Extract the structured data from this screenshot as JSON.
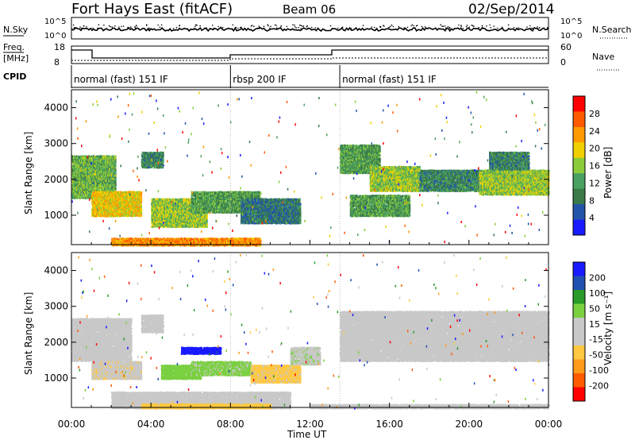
{
  "header": {
    "station": "Fort Hays East (fitACF)",
    "beam": "Beam 06",
    "date": "02/Sep/2014"
  },
  "noise_panel": {
    "left_label": "N.Sky",
    "right_label": "N.Search",
    "ticks": [
      "10^5",
      "10^0"
    ]
  },
  "freq_panel": {
    "freq_label": "Freq.",
    "unit_label": "[MHz]",
    "left_ticks": [
      "18",
      "8"
    ],
    "right_ticks": [
      "60",
      "0"
    ],
    "nave_label": "Nave"
  },
  "cpid": {
    "label": "CPID",
    "segments": [
      {
        "label": "normal (fast) 151 IF",
        "start_hour": 0,
        "end_hour": 8
      },
      {
        "label": "rbsp 200 IF",
        "start_hour": 8,
        "end_hour": 13.5
      },
      {
        "label": "normal (fast) 151 IF",
        "start_hour": 13.5,
        "end_hour": 24
      }
    ]
  },
  "colors": {
    "power_scale": [
      "#1a1aff",
      "#2255aa",
      "#3a7a4a",
      "#4aa060",
      "#8ccc3a",
      "#f0d000",
      "#ff9900",
      "#ff5a00",
      "#ff0000"
    ],
    "velocity_scale": [
      "#ff0000",
      "#ff5a00",
      "#ff9a1a",
      "#ffc840",
      "#c8c8c8",
      "#c8c8c8",
      "#7ad040",
      "#2a9a2a",
      "#2050b0",
      "#1a1aff"
    ]
  },
  "chart_data": [
    {
      "type": "heatmap",
      "name": "power",
      "ylabel": "Slant Range [km]",
      "ylim": [
        180,
        4500
      ],
      "yticks": [
        "1000",
        "2000",
        "3000",
        "4000"
      ],
      "xlim": [
        0,
        24
      ],
      "colorbar": {
        "label": "Power [dB]",
        "ticks": [
          "4",
          "8",
          "12",
          "16",
          "20",
          "24",
          "28"
        ],
        "range": [
          0,
          32
        ]
      },
      "echo_bands": [
        {
          "t_start": 0.0,
          "t_end": 2.2,
          "r_low": 1500,
          "r_high": 2700,
          "level": 14
        },
        {
          "t_start": 1.0,
          "t_end": 3.5,
          "r_low": 1000,
          "r_high": 1700,
          "level": 20
        },
        {
          "t_start": 3.5,
          "t_end": 4.6,
          "r_low": 2350,
          "r_high": 2800,
          "level": 10
        },
        {
          "t_start": 4.0,
          "t_end": 6.8,
          "r_low": 700,
          "r_high": 1500,
          "level": 16
        },
        {
          "t_start": 6.0,
          "t_end": 9.5,
          "r_low": 1100,
          "r_high": 1700,
          "level": 12
        },
        {
          "t_start": 8.5,
          "t_end": 11.5,
          "r_low": 800,
          "r_high": 1500,
          "level": 8
        },
        {
          "t_start": 13.5,
          "t_end": 15.5,
          "r_low": 2200,
          "r_high": 3000,
          "level": 12
        },
        {
          "t_start": 15.0,
          "t_end": 17.5,
          "r_low": 1700,
          "r_high": 2400,
          "level": 16
        },
        {
          "t_start": 14.0,
          "t_end": 17.0,
          "r_low": 1000,
          "r_high": 1600,
          "level": 12
        },
        {
          "t_start": 17.5,
          "t_end": 20.5,
          "r_low": 1700,
          "r_high": 2300,
          "level": 10
        },
        {
          "t_start": 20.5,
          "t_end": 24.0,
          "r_low": 1600,
          "r_high": 2300,
          "level": 16
        },
        {
          "t_start": 21.0,
          "t_end": 23.0,
          "r_low": 2300,
          "r_high": 2800,
          "level": 10
        },
        {
          "t_start": 2.0,
          "t_end": 9.5,
          "r_low": 180,
          "r_high": 400,
          "level": 24
        }
      ]
    },
    {
      "type": "heatmap",
      "name": "velocity",
      "ylabel": "Slant Range [km]",
      "ylim": [
        180,
        4500
      ],
      "yticks": [
        "1000",
        "2000",
        "3000",
        "4000"
      ],
      "xlim": [
        0,
        24
      ],
      "xticks": [
        "00:00",
        "04:00",
        "08:00",
        "12:00",
        "16:00",
        "20:00",
        "00:00"
      ],
      "xlabel": "Time UT",
      "colorbar": {
        "label": "Velocity [m s⁻¹]",
        "ticks": [
          "200",
          "100",
          "50",
          "15",
          "-15",
          "-50",
          "-100",
          "-200"
        ],
        "range": [
          -250,
          250
        ]
      },
      "echo_bands": [
        {
          "t_start": 0.0,
          "t_end": 3.0,
          "r_low": 1500,
          "r_high": 2700,
          "level": 0
        },
        {
          "t_start": 1.0,
          "t_end": 3.5,
          "r_low": 1000,
          "r_high": 1500,
          "level": -40
        },
        {
          "t_start": 3.5,
          "t_end": 4.6,
          "r_low": 2300,
          "r_high": 2800,
          "level": 0
        },
        {
          "t_start": 4.5,
          "t_end": 6.5,
          "r_low": 1000,
          "r_high": 1400,
          "level": 80
        },
        {
          "t_start": 5.5,
          "t_end": 7.5,
          "r_low": 1700,
          "r_high": 1900,
          "level": 220
        },
        {
          "t_start": 6.0,
          "t_end": 9.0,
          "r_low": 1100,
          "r_high": 1500,
          "level": 60
        },
        {
          "t_start": 9.0,
          "t_end": 11.5,
          "r_low": 900,
          "r_high": 1400,
          "level": -60
        },
        {
          "t_start": 11.0,
          "t_end": 12.5,
          "r_low": 1400,
          "r_high": 1900,
          "level": 40
        },
        {
          "t_start": 13.5,
          "t_end": 24.0,
          "r_low": 1500,
          "r_high": 2900,
          "level": 0
        },
        {
          "t_start": 2.0,
          "t_end": 11.0,
          "r_low": 180,
          "r_high": 650,
          "level": 0
        },
        {
          "t_start": 3.5,
          "t_end": 10.0,
          "r_low": 180,
          "r_high": 320,
          "level": -80
        },
        {
          "t_start": 12.0,
          "t_end": 24.0,
          "r_low": 180,
          "r_high": 300,
          "level": -30
        }
      ]
    }
  ]
}
